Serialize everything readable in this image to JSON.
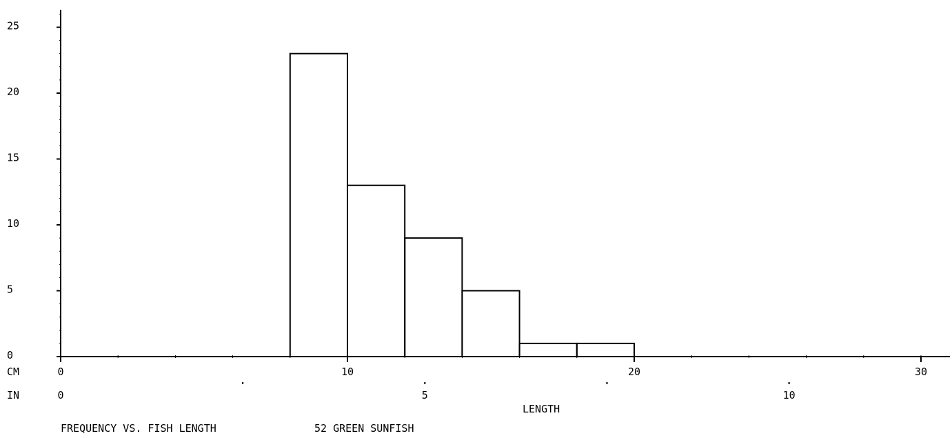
{
  "chart_data": {
    "type": "bar",
    "title": "FREQUENCY VS. FISH LENGTH",
    "subtitle": "52 GREEN SUNFISH",
    "xlabel": "LENGTH",
    "ylabel": "",
    "bin_edges_cm": [
      8,
      10,
      12,
      14,
      16,
      18,
      20
    ],
    "values": [
      23,
      13,
      9,
      5,
      1,
      1
    ],
    "ylim": [
      0,
      26
    ],
    "y_ticks": [
      0,
      5,
      10,
      15,
      20,
      25
    ],
    "cm_axis": {
      "label": "CM",
      "range": [
        0,
        31
      ],
      "labeled_ticks": [
        0,
        10,
        20,
        30
      ],
      "minor_tick_step": 2
    },
    "in_axis": {
      "label": "IN",
      "labeled_ticks": [
        0,
        5,
        10
      ],
      "minor_tick_step": 2.5
    },
    "grid": false,
    "line_color": "#000000"
  }
}
